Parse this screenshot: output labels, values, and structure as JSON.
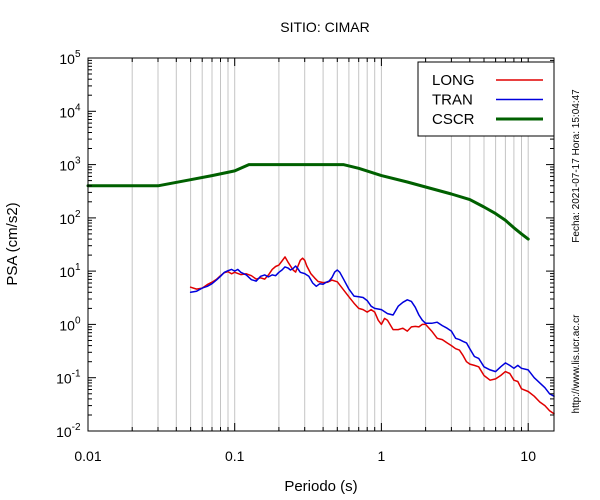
{
  "chart_data": {
    "type": "line",
    "title": "SITIO: CIMAR",
    "xlabel": "Periodo (s)",
    "ylabel": "PSA (cm/s2)",
    "xscale": "log",
    "yscale": "log",
    "xlim": [
      0.01,
      15
    ],
    "ylim": [
      0.01,
      100000
    ],
    "grid": "x-minor-and-major",
    "legend_placement": "top-right",
    "x_ticks": [
      {
        "value": 0.01,
        "label": "0.01"
      },
      {
        "value": 0.1,
        "label": "0.1"
      },
      {
        "value": 1,
        "label": "1"
      },
      {
        "value": 10,
        "label": "10"
      }
    ],
    "y_ticks": [
      {
        "value": 0.01,
        "base": "10",
        "exp": "-2"
      },
      {
        "value": 0.1,
        "base": "10",
        "exp": "-1"
      },
      {
        "value": 1,
        "base": "10",
        "exp": "0"
      },
      {
        "value": 10,
        "base": "10",
        "exp": "1"
      },
      {
        "value": 100,
        "base": "10",
        "exp": "2"
      },
      {
        "value": 1000,
        "base": "10",
        "exp": "3"
      },
      {
        "value": 10000,
        "base": "10",
        "exp": "4"
      },
      {
        "value": 100000,
        "base": "10",
        "exp": "5"
      }
    ],
    "series": [
      {
        "name": "LONG",
        "color": "#e00000",
        "width": 1.5,
        "points": [
          [
            0.05,
            5.0
          ],
          [
            0.055,
            4.6
          ],
          [
            0.06,
            4.8
          ],
          [
            0.065,
            5.6
          ],
          [
            0.07,
            6.2
          ],
          [
            0.075,
            7.0
          ],
          [
            0.08,
            8.2
          ],
          [
            0.085,
            9.4
          ],
          [
            0.09,
            9.8
          ],
          [
            0.095,
            8.9
          ],
          [
            0.1,
            9.5
          ],
          [
            0.11,
            8.6
          ],
          [
            0.12,
            8.9
          ],
          [
            0.13,
            8.2
          ],
          [
            0.14,
            7.1
          ],
          [
            0.15,
            7.5
          ],
          [
            0.16,
            7.1
          ],
          [
            0.17,
            8.5
          ],
          [
            0.18,
            10.8
          ],
          [
            0.19,
            12.2
          ],
          [
            0.2,
            13.0
          ],
          [
            0.21,
            15.5
          ],
          [
            0.22,
            18.5
          ],
          [
            0.23,
            15.0
          ],
          [
            0.24,
            12.5
          ],
          [
            0.25,
            10.5
          ],
          [
            0.26,
            9.6
          ],
          [
            0.27,
            12.5
          ],
          [
            0.28,
            16.0
          ],
          [
            0.29,
            17.5
          ],
          [
            0.3,
            16.0
          ],
          [
            0.31,
            12.5
          ],
          [
            0.33,
            9.0
          ],
          [
            0.35,
            7.5
          ],
          [
            0.37,
            6.4
          ],
          [
            0.4,
            6.1
          ],
          [
            0.43,
            6.2
          ],
          [
            0.46,
            6.8
          ],
          [
            0.5,
            6.3
          ],
          [
            0.55,
            4.5
          ],
          [
            0.6,
            3.3
          ],
          [
            0.65,
            2.5
          ],
          [
            0.7,
            2.0
          ],
          [
            0.75,
            1.9
          ],
          [
            0.8,
            1.7
          ],
          [
            0.85,
            1.9
          ],
          [
            0.9,
            1.7
          ],
          [
            0.95,
            1.2
          ],
          [
            1.0,
            1.0
          ],
          [
            1.05,
            1.3
          ],
          [
            1.1,
            1.2
          ],
          [
            1.2,
            0.8
          ],
          [
            1.3,
            0.8
          ],
          [
            1.4,
            0.85
          ],
          [
            1.5,
            0.75
          ],
          [
            1.6,
            0.9
          ],
          [
            1.7,
            0.92
          ],
          [
            1.8,
            0.9
          ],
          [
            1.9,
            1.0
          ],
          [
            2.0,
            1.0
          ],
          [
            2.2,
            0.75
          ],
          [
            2.4,
            0.55
          ],
          [
            2.6,
            0.52
          ],
          [
            2.8,
            0.45
          ],
          [
            3.0,
            0.4
          ],
          [
            3.2,
            0.35
          ],
          [
            3.4,
            0.33
          ],
          [
            3.6,
            0.26
          ],
          [
            3.8,
            0.2
          ],
          [
            4.0,
            0.18
          ],
          [
            4.3,
            0.17
          ],
          [
            4.6,
            0.16
          ],
          [
            5.0,
            0.11
          ],
          [
            5.5,
            0.09
          ],
          [
            6.0,
            0.095
          ],
          [
            6.5,
            0.11
          ],
          [
            7.0,
            0.13
          ],
          [
            7.5,
            0.12
          ],
          [
            8.0,
            0.09
          ],
          [
            8.5,
            0.085
          ],
          [
            9.0,
            0.062
          ],
          [
            10.0,
            0.055
          ],
          [
            11.0,
            0.045
          ],
          [
            12.0,
            0.035
          ],
          [
            13.0,
            0.03
          ],
          [
            14.0,
            0.024
          ],
          [
            15.0,
            0.021
          ]
        ]
      },
      {
        "name": "TRAN",
        "color": "#0000dd",
        "width": 1.5,
        "points": [
          [
            0.05,
            4.0
          ],
          [
            0.055,
            4.2
          ],
          [
            0.06,
            4.8
          ],
          [
            0.065,
            5.2
          ],
          [
            0.07,
            5.8
          ],
          [
            0.075,
            6.8
          ],
          [
            0.08,
            8.0
          ],
          [
            0.085,
            9.5
          ],
          [
            0.09,
            10.2
          ],
          [
            0.095,
            10.8
          ],
          [
            0.1,
            10.0
          ],
          [
            0.105,
            10.8
          ],
          [
            0.11,
            9.5
          ],
          [
            0.12,
            8.5
          ],
          [
            0.13,
            6.9
          ],
          [
            0.14,
            6.5
          ],
          [
            0.15,
            8.0
          ],
          [
            0.16,
            8.5
          ],
          [
            0.17,
            7.8
          ],
          [
            0.18,
            8.5
          ],
          [
            0.19,
            8.2
          ],
          [
            0.2,
            9.5
          ],
          [
            0.21,
            10.5
          ],
          [
            0.22,
            12.0
          ],
          [
            0.23,
            11.5
          ],
          [
            0.24,
            10.5
          ],
          [
            0.25,
            11.2
          ],
          [
            0.26,
            12.5
          ],
          [
            0.27,
            11.0
          ],
          [
            0.28,
            9.5
          ],
          [
            0.3,
            9.0
          ],
          [
            0.32,
            8.0
          ],
          [
            0.34,
            6.0
          ],
          [
            0.36,
            5.2
          ],
          [
            0.38,
            5.8
          ],
          [
            0.4,
            5.7
          ],
          [
            0.42,
            6.2
          ],
          [
            0.44,
            6.5
          ],
          [
            0.46,
            7.6
          ],
          [
            0.48,
            9.6
          ],
          [
            0.5,
            10.5
          ],
          [
            0.52,
            9.5
          ],
          [
            0.55,
            7.2
          ],
          [
            0.6,
            4.6
          ],
          [
            0.65,
            3.4
          ],
          [
            0.7,
            3.3
          ],
          [
            0.75,
            3.2
          ],
          [
            0.8,
            2.8
          ],
          [
            0.85,
            2.2
          ],
          [
            0.9,
            2.0
          ],
          [
            1.0,
            1.9
          ],
          [
            1.1,
            1.6
          ],
          [
            1.2,
            1.5
          ],
          [
            1.3,
            2.2
          ],
          [
            1.4,
            2.6
          ],
          [
            1.5,
            2.9
          ],
          [
            1.6,
            2.7
          ],
          [
            1.7,
            2.1
          ],
          [
            1.8,
            1.5
          ],
          [
            1.9,
            1.2
          ],
          [
            2.0,
            1.05
          ],
          [
            2.2,
            1.05
          ],
          [
            2.4,
            1.1
          ],
          [
            2.6,
            0.95
          ],
          [
            2.8,
            0.85
          ],
          [
            3.0,
            0.75
          ],
          [
            3.2,
            0.55
          ],
          [
            3.4,
            0.52
          ],
          [
            3.6,
            0.48
          ],
          [
            3.8,
            0.45
          ],
          [
            4.0,
            0.35
          ],
          [
            4.3,
            0.25
          ],
          [
            4.6,
            0.23
          ],
          [
            5.0,
            0.16
          ],
          [
            5.5,
            0.14
          ],
          [
            6.0,
            0.13
          ],
          [
            6.5,
            0.16
          ],
          [
            7.0,
            0.19
          ],
          [
            7.5,
            0.17
          ],
          [
            8.0,
            0.15
          ],
          [
            8.5,
            0.17
          ],
          [
            9.0,
            0.15
          ],
          [
            10.0,
            0.14
          ],
          [
            11.0,
            0.1
          ],
          [
            12.0,
            0.08
          ],
          [
            13.0,
            0.065
          ],
          [
            14.0,
            0.05
          ],
          [
            15.0,
            0.045
          ]
        ]
      },
      {
        "name": "CSCR",
        "color": "#006000",
        "width": 3,
        "points": [
          [
            0.01,
            400
          ],
          [
            0.03,
            400
          ],
          [
            0.05,
            520
          ],
          [
            0.07,
            620
          ],
          [
            0.1,
            760
          ],
          [
            0.125,
            1000
          ],
          [
            0.15,
            1000
          ],
          [
            0.3,
            1000
          ],
          [
            0.55,
            1000
          ],
          [
            0.7,
            850
          ],
          [
            1.0,
            620
          ],
          [
            1.5,
            470
          ],
          [
            2.0,
            380
          ],
          [
            3.0,
            280
          ],
          [
            4.0,
            220
          ],
          [
            5.0,
            160
          ],
          [
            6.0,
            120
          ],
          [
            7.0,
            90
          ],
          [
            8.0,
            65
          ],
          [
            9.0,
            50
          ],
          [
            10.0,
            40
          ]
        ]
      }
    ]
  },
  "side_text": {
    "date": "Fecha: 2021-07-17  Hora: 15:04:47",
    "url": "http://www.lis.ucr.ac.cr"
  }
}
